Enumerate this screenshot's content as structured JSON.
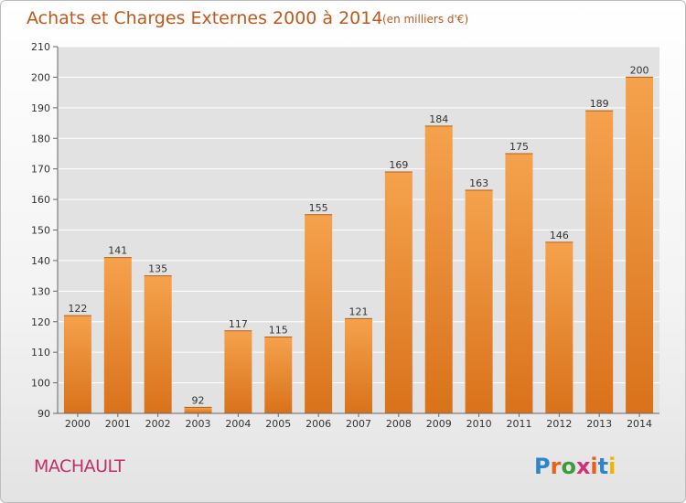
{
  "header": {
    "title": "Achats et Charges Externes 2000 à 2014",
    "unit": "(en milliers d'€)"
  },
  "commune": "MACHAULT",
  "logo": {
    "text": "Proxiti",
    "letter_colors": [
      "#2e86c8",
      "#e8611a",
      "#3a9c3a",
      "#d62f7a",
      "#e8611a",
      "#2e86c8",
      "#f0b400"
    ]
  },
  "colors": {
    "bar_light": "#f5a24d",
    "bar_dark": "#d9721a",
    "plot_bg": "#e2e2e2",
    "grid": "#ffffff",
    "title": "#c0581c",
    "commune": "#c0306a"
  },
  "chart_data": {
    "type": "bar",
    "title": "Achats et Charges Externes 2000 à 2014",
    "subtitle": "(en milliers d'€)",
    "xlabel": "",
    "ylabel": "",
    "categories": [
      "2000",
      "2001",
      "2002",
      "2003",
      "2004",
      "2005",
      "2006",
      "2007",
      "2008",
      "2009",
      "2010",
      "2011",
      "2012",
      "2013",
      "2014"
    ],
    "values": [
      122,
      141,
      135,
      92,
      117,
      115,
      155,
      121,
      169,
      184,
      163,
      175,
      146,
      189,
      200
    ],
    "ylim": [
      90,
      210
    ],
    "yticks": [
      90,
      100,
      110,
      120,
      130,
      140,
      150,
      160,
      170,
      180,
      190,
      200,
      210
    ],
    "grid": true,
    "legend": "none"
  }
}
